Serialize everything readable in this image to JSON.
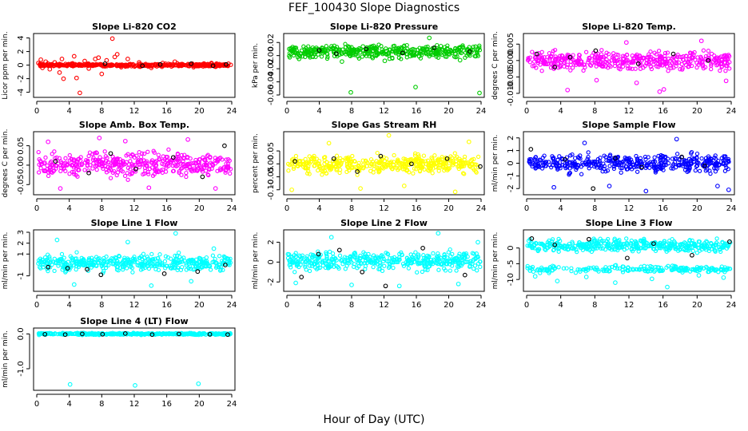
{
  "figure": {
    "title": "FEF_100430  Slope Diagnostics",
    "xlabel": "Hour of Day (UTC)"
  },
  "chart_data": [
    {
      "type": "scatter",
      "title": "Slope Li-820 CO2",
      "xlabel": "Hour of Day (UTC)",
      "ylabel": "Licor ppm per min.",
      "xlim": [
        0,
        24
      ],
      "ylim": [
        -4.4,
        4.3
      ],
      "xticks": [
        0,
        4,
        8,
        12,
        16,
        20,
        24
      ],
      "yticks": [
        -4,
        -2,
        0,
        2,
        4
      ],
      "series": [
        {
          "color": "#ff0000",
          "points": [
            [
              0.2,
              0.3
            ],
            [
              0.5,
              0.8
            ],
            [
              0.7,
              -0.4
            ],
            [
              1.1,
              0.5
            ],
            [
              1.6,
              -0.6
            ],
            [
              2.2,
              0.4
            ],
            [
              2.8,
              -1.1
            ],
            [
              3.1,
              0.9
            ],
            [
              3.3,
              -2.0
            ],
            [
              4.6,
              1.3
            ],
            [
              4.9,
              -1.9
            ],
            [
              5.3,
              -4.1
            ],
            [
              5.9,
              0.6
            ],
            [
              6.4,
              -0.5
            ],
            [
              7.2,
              0.9
            ],
            [
              7.6,
              1.1
            ],
            [
              8.0,
              -1.3
            ],
            [
              8.6,
              0.7
            ],
            [
              9.3,
              3.9
            ],
            [
              9.6,
              1.2
            ],
            [
              9.9,
              1.6
            ],
            [
              10.4,
              -0.3
            ],
            [
              11.2,
              0.9
            ],
            [
              12.6,
              0.4
            ],
            [
              14.1,
              -0.4
            ],
            [
              15.5,
              0.3
            ],
            [
              17.0,
              0.5
            ],
            [
              19.3,
              -0.3
            ],
            [
              21.5,
              0.3
            ],
            [
              23.6,
              0.2
            ]
          ]
        },
        {
          "color": "#000000",
          "points": [
            [
              8.4,
              0.2
            ],
            [
              13.0,
              -0.1
            ],
            [
              15.2,
              0.1
            ],
            [
              19.0,
              0.2
            ],
            [
              21.7,
              -0.1
            ],
            [
              23.3,
              0.1
            ]
          ]
        }
      ],
      "dense_band": {
        "color": "#ff0000",
        "range": [
          -0.3,
          0.3
        ]
      }
    },
    {
      "type": "scatter",
      "title": "Slope Li-820 Pressure",
      "xlabel": "Hour of Day (UTC)",
      "ylabel": "kPa per min.",
      "xlim": [
        0,
        24
      ],
      "ylim": [
        -0.06,
        0.03
      ],
      "xticks": [
        0,
        4,
        8,
        12,
        16,
        20,
        24
      ],
      "yticks": [
        -0.06,
        -0.04,
        -0.02,
        0.0,
        0.02
      ],
      "yticklabels": [
        "-0.06",
        "-0.04",
        "-0.02",
        "0.00",
        "0.02"
      ],
      "series": [
        {
          "color": "#00cc00",
          "points": [
            [
              0.3,
              0.01
            ],
            [
              1.5,
              -0.005
            ],
            [
              3.2,
              0.012
            ],
            [
              6.8,
              -0.009
            ],
            [
              7.9,
              -0.056
            ],
            [
              9.4,
              0.014
            ],
            [
              12.1,
              -0.008
            ],
            [
              15.9,
              -0.048
            ],
            [
              17.6,
              0.027
            ],
            [
              19.8,
              0.011
            ],
            [
              21.4,
              -0.007
            ],
            [
              23.8,
              -0.057
            ]
          ]
        },
        {
          "color": "#000000",
          "points": [
            [
              4.0,
              0.008
            ],
            [
              6.1,
              0.003
            ],
            [
              9.8,
              0.01
            ],
            [
              14.3,
              0.004
            ],
            [
              18.2,
              0.012
            ],
            [
              22.6,
              0.006
            ]
          ]
        }
      ],
      "dense_band": {
        "color": "#00cc00",
        "range": [
          -0.008,
          0.02
        ]
      }
    },
    {
      "type": "scatter",
      "title": "Slope Li-820 Temp.",
      "xlabel": "Hour of Day (UTC)",
      "ylabel": "degrees C per min.",
      "xlim": [
        0,
        24
      ],
      "ylim": [
        -0.0105,
        0.0075
      ],
      "xticks": [
        0,
        4,
        8,
        12,
        16,
        20,
        24
      ],
      "yticks": [
        -0.01,
        -0.005,
        0.0,
        0.005
      ],
      "yticklabels": [
        "-0.010",
        "-0.005",
        "0.000",
        "0.005"
      ],
      "series": [
        {
          "color": "#ff00ff",
          "points": [
            [
              4.8,
              -0.009
            ],
            [
              8.2,
              -0.006
            ],
            [
              11.7,
              0.0055
            ],
            [
              12.9,
              -0.0068
            ],
            [
              15.6,
              -0.0095
            ],
            [
              16.1,
              -0.0088
            ],
            [
              20.5,
              0.006
            ],
            [
              23.4,
              -0.0062
            ]
          ]
        },
        {
          "color": "#000000",
          "points": [
            [
              1.2,
              0.002
            ],
            [
              3.3,
              -0.002
            ],
            [
              5.1,
              0.001
            ],
            [
              8.1,
              0.003
            ],
            [
              13.1,
              -0.001
            ],
            [
              17.2,
              0.002
            ],
            [
              21.3,
              0.0
            ]
          ]
        }
      ],
      "dense_band": {
        "color": "#ff00ff",
        "range": [
          -0.004,
          0.004
        ]
      }
    },
    {
      "type": "scatter",
      "title": "Slope Amb. Box Temp.",
      "xlabel": "Hour of Day (UTC)",
      "ylabel": "degrees C per min.",
      "xlim": [
        0,
        24
      ],
      "ylim": [
        -0.07,
        0.08
      ],
      "xticks": [
        0,
        4,
        8,
        12,
        16,
        20,
        24
      ],
      "yticks": [
        -0.05,
        0.0,
        0.05
      ],
      "yticklabels": [
        "-0.05",
        "0.00",
        "0.05"
      ],
      "series": [
        {
          "color": "#ff00ff",
          "points": [
            [
              1.4,
              0.06
            ],
            [
              2.9,
              -0.06
            ],
            [
              7.7,
              0.07
            ],
            [
              10.9,
              0.062
            ],
            [
              13.8,
              -0.058
            ],
            [
              18.6,
              0.066
            ],
            [
              22.0,
              -0.06
            ]
          ]
        },
        {
          "color": "#000000",
          "points": [
            [
              2.3,
              0.01
            ],
            [
              6.4,
              -0.02
            ],
            [
              9.1,
              0.03
            ],
            [
              12.2,
              -0.01
            ],
            [
              16.8,
              0.02
            ],
            [
              20.4,
              -0.03
            ],
            [
              23.1,
              0.05
            ]
          ]
        }
      ],
      "dense_band": {
        "color": "#ff00ff",
        "range": [
          -0.04,
          0.045
        ]
      }
    },
    {
      "type": "scatter",
      "title": "Slope Gas Stream RH",
      "xlabel": "Hour of Day (UTC)",
      "ylabel": "percent per min.",
      "xlim": [
        0,
        24
      ],
      "ylim": [
        -0.11,
        0.115
      ],
      "xticks": [
        0,
        4,
        8,
        12,
        16,
        20,
        24
      ],
      "yticks": [
        -0.1,
        -0.05,
        0.0,
        0.05
      ],
      "yticklabels": [
        "-0.10",
        "-0.05",
        "0.00",
        "0.05"
      ],
      "series": [
        {
          "color": "#ffff00",
          "points": [
            [
              0.6,
              -0.1
            ],
            [
              5.2,
              0.08
            ],
            [
              9.1,
              -0.095
            ],
            [
              12.6,
              0.11
            ],
            [
              14.5,
              -0.085
            ],
            [
              20.8,
              -0.108
            ],
            [
              22.5,
              0.085
            ]
          ]
        },
        {
          "color": "#000000",
          "points": [
            [
              1.0,
              0.01
            ],
            [
              5.8,
              0.02
            ],
            [
              8.7,
              -0.03
            ],
            [
              11.6,
              0.03
            ],
            [
              15.4,
              0.0
            ],
            [
              19.8,
              0.02
            ],
            [
              23.9,
              -0.01
            ]
          ]
        }
      ],
      "dense_band": {
        "color": "#ffff00",
        "range": [
          -0.05,
          0.05
        ]
      }
    },
    {
      "type": "scatter",
      "title": "Slope Sample Flow",
      "xlabel": "Hour of Day (UTC)",
      "ylabel": "ml/min per min.",
      "xlim": [
        0,
        24
      ],
      "ylim": [
        -2.3,
        2.3
      ],
      "xticks": [
        0,
        4,
        8,
        12,
        16,
        20,
        24
      ],
      "yticks": [
        -2,
        -1,
        0,
        1,
        2
      ],
      "series": [
        {
          "color": "#0000ff",
          "points": [
            [
              3.2,
              -1.9
            ],
            [
              6.8,
              1.6
            ],
            [
              9.7,
              -1.8
            ],
            [
              14.0,
              -2.2
            ],
            [
              17.6,
              1.9
            ],
            [
              22.4,
              -1.8
            ],
            [
              23.7,
              -2.1
            ]
          ]
        },
        {
          "color": "#000000",
          "points": [
            [
              0.5,
              1.1
            ],
            [
              4.5,
              0.3
            ],
            [
              7.8,
              -2.0
            ],
            [
              10.4,
              0.4
            ],
            [
              13.5,
              -0.3
            ],
            [
              18.2,
              0.5
            ],
            [
              20.9,
              -0.2
            ]
          ]
        }
      ],
      "dense_band": {
        "color": "#0000ff",
        "range": [
          -1.0,
          1.0
        ]
      }
    },
    {
      "type": "scatter",
      "title": "Slope Line 1 Flow",
      "xlabel": "Hour of Day (UTC)",
      "ylabel": "ml/min per min.",
      "xlim": [
        0,
        24
      ],
      "ylim": [
        -2.2,
        3.0
      ],
      "xticks": [
        0,
        4,
        8,
        12,
        16,
        20,
        24
      ],
      "yticks": [
        -1,
        1,
        2,
        3
      ],
      "series": [
        {
          "color": "#00ffff",
          "points": [
            [
              2.5,
              2.3
            ],
            [
              4.6,
              -1.8
            ],
            [
              11.2,
              2.1
            ],
            [
              14.1,
              -1.9
            ],
            [
              17.1,
              2.9
            ],
            [
              19.0,
              -1.5
            ],
            [
              21.8,
              1.5
            ]
          ]
        },
        {
          "color": "#000000",
          "points": [
            [
              1.4,
              -0.2
            ],
            [
              3.8,
              -0.3
            ],
            [
              6.2,
              -0.4
            ],
            [
              7.9,
              -0.9
            ],
            [
              15.7,
              -0.8
            ],
            [
              19.8,
              -0.6
            ],
            [
              23.2,
              0.0
            ]
          ]
        }
      ],
      "dense_band": {
        "color": "#00ffff",
        "range": [
          -0.8,
          1.2
        ]
      }
    },
    {
      "type": "scatter",
      "title": "Slope Line 2 Flow",
      "xlabel": "Hour of Day (UTC)",
      "ylabel": "ml/min per min.",
      "xlim": [
        0,
        24
      ],
      "ylim": [
        -2.7,
        3.0
      ],
      "xticks": [
        0,
        4,
        8,
        12,
        16,
        20,
        24
      ],
      "yticks": [
        -2,
        0,
        2
      ],
      "series": [
        {
          "color": "#00ffff",
          "points": [
            [
              1.1,
              -2.1
            ],
            [
              5.5,
              2.5
            ],
            [
              8.0,
              -2.3
            ],
            [
              13.9,
              -2.4
            ],
            [
              18.7,
              2.9
            ],
            [
              21.2,
              -2.2
            ],
            [
              23.6,
              2.0
            ]
          ]
        },
        {
          "color": "#000000",
          "points": [
            [
              1.8,
              -1.5
            ],
            [
              3.9,
              0.8
            ],
            [
              6.5,
              1.2
            ],
            [
              9.3,
              -1.0
            ],
            [
              12.2,
              -2.4
            ],
            [
              16.8,
              1.4
            ],
            [
              22.0,
              -1.3
            ]
          ]
        }
      ],
      "dense_band": {
        "color": "#00ffff",
        "range": [
          -1.2,
          1.5
        ]
      }
    },
    {
      "type": "scatter",
      "title": "Slope Line 3 Flow",
      "xlabel": "Hour of Day (UTC)",
      "ylabel": "ml/min per min.",
      "xlim": [
        0,
        24
      ],
      "ylim": [
        -13,
        5
      ],
      "xticks": [
        0,
        4,
        8,
        12,
        16,
        20,
        24
      ],
      "yticks": [
        -10,
        -5,
        0
      ],
      "series": [
        {
          "color": "#00ffff",
          "points": [
            [
              1.0,
              -9.0
            ],
            [
              3.6,
              -10.5
            ],
            [
              7.0,
              -9.2
            ],
            [
              10.4,
              -11.0
            ],
            [
              14.7,
              -9.8
            ],
            [
              16.5,
              -12.4
            ],
            [
              20.2,
              -8.7
            ],
            [
              23.1,
              -9.4
            ]
          ]
        },
        {
          "color": "#000000",
          "points": [
            [
              0.6,
              3.0
            ],
            [
              3.3,
              1.0
            ],
            [
              7.3,
              2.8
            ],
            [
              11.8,
              -3.2
            ],
            [
              14.9,
              1.4
            ],
            [
              19.4,
              -2.3
            ],
            [
              23.8,
              2.0
            ]
          ]
        }
      ],
      "dense_band": {
        "color": "#00ffff",
        "range": [
          -2,
          3.5
        ]
      },
      "second_band": {
        "color": "#00ffff",
        "range": [
          -8.3,
          -5.2
        ]
      }
    },
    {
      "type": "scatter",
      "title": "Slope Line 4 (LT) Flow",
      "xlabel": "Hour of Day (UTC)",
      "ylabel": "ml/min per min.",
      "xlim": [
        0,
        24
      ],
      "ylim": [
        -1.55,
        0.1
      ],
      "xticks": [
        0,
        4,
        8,
        12,
        16,
        20,
        24
      ],
      "yticks": [
        -1.0,
        0.0
      ],
      "yticklabels": [
        "-1.0",
        "0.0"
      ],
      "series": [
        {
          "color": "#00ffff",
          "points": [
            [
              4.1,
              -1.45
            ],
            [
              12.1,
              -1.48
            ],
            [
              19.9,
              -1.43
            ]
          ]
        },
        {
          "color": "#000000",
          "points": [
            [
              1.0,
              -0.01
            ],
            [
              3.5,
              -0.02
            ],
            [
              5.6,
              0.0
            ],
            [
              8.1,
              -0.01
            ],
            [
              10.9,
              0.01
            ],
            [
              14.2,
              -0.02
            ],
            [
              17.5,
              0.0
            ],
            [
              21.3,
              -0.01
            ],
            [
              23.5,
              -0.02
            ]
          ]
        }
      ],
      "dense_band": {
        "color": "#00ffff",
        "range": [
          -0.04,
          0.04
        ]
      }
    }
  ]
}
